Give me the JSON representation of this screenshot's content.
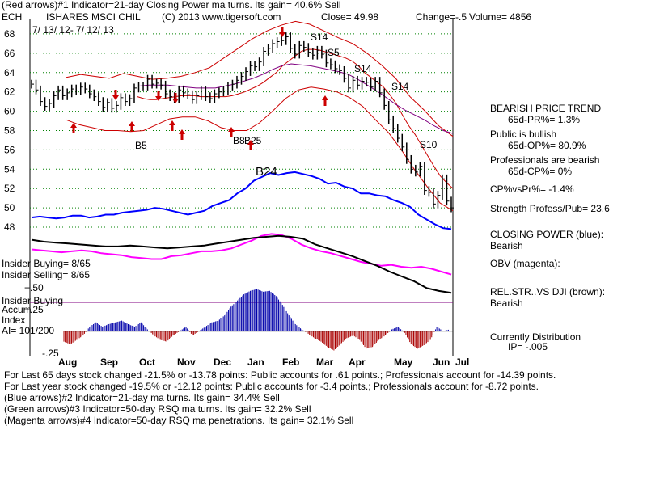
{
  "header": {
    "line1": "(Red arrows)#1 Indicator=21-day Closing Power ma turns. Its gain= 40.6% Sell",
    "symbol": "ECH",
    "name": "ISHARES MSCI CHIL",
    "copyright": "(C) 2013 www.tigersoft.com",
    "close": "Close=  49.98",
    "change": "Change=-.5",
    "volume": "Volume= 4856",
    "date_range": "7/ 13/ 12-  7/ 12/ 13"
  },
  "sidebar": {
    "trend_title": "BEARISH PRICE TREND",
    "pr": "65d-PR%= 1.3%",
    "public_title": "Public is bullish",
    "op": "65d-OP%= 80.9%",
    "pro_title": "Professionals are bearish",
    "cp": "65d-CP%= 0%",
    "cpvspr": "CP%vsPr%= -1.4%",
    "strength": "Strength Profess/Pub= 23.6",
    "closing_power_label": "CLOSING POWER (blue):",
    "closing_power_value": "Bearish",
    "obv_label": "OBV (magenta):",
    "relstr_label": "REL.STR..VS DJI (brown):",
    "relstr_value": "Bearish",
    "dist_label": "Currently Distribution",
    "ip": "IP= -.005"
  },
  "left_panel": {
    "insider_buying": "Insider Buying= 8/65",
    "insider_selling": "Insider Selling= 8/65",
    "plus50": "+.50",
    "insider_line_label": "Insider Buying",
    "accum1": "Accum",
    "plus25": "+.25",
    "accum2": "Index",
    "ai": "AI= 101/200",
    "minus25": "-.25"
  },
  "footer": {
    "line1": "For Last 65 days stock changed -21.5% or -13.78 points:  Public accounts for  .61 points.;  Professionals account for -14.39 points.",
    "line2": "For Last year stock changed -19.5% or -12.12 points:  Public accounts for -3.4 points.;  Professionals account for -8.72 points.",
    "line3": "(Blue arrows)#2 Indicator=21-day ma turns. Its gain= 34.4% Sell",
    "line4": "(Green arrows)#3 Indicator=50-day RSQ ma turns. Its gain= 32.2% Sell",
    "line5": "(Magenta arrows)#4 Indicator=50-day RSQ ma penetrations. Its gain= 32.1% Sell"
  },
  "chart_data": {
    "type": "line",
    "title": "ISHARES MSCI CHIL (ECH)",
    "x_months": [
      "Aug",
      "Sep",
      "Oct",
      "Nov",
      "Dec",
      "Jan",
      "Feb",
      "Mar",
      "Apr",
      "May",
      "Jun",
      "Jul"
    ],
    "y_ticks": [
      48,
      50,
      52,
      54,
      56,
      58,
      60,
      62,
      64,
      66,
      68
    ],
    "ylim": [
      47.5,
      69.5
    ],
    "colors": {
      "price": "#000000",
      "ma21": "#cc0000",
      "ma50": "#800080",
      "band": "#cc0000",
      "closing_power": "#0000ff",
      "obv": "#ff00ff",
      "relstr": "#000000",
      "accum_pos": "#0000aa",
      "accum_neg": "#aa0000",
      "grid": "#008000",
      "insider": "#800080",
      "annotation": "#000000"
    },
    "price_close": [
      62.8,
      62.2,
      61.0,
      60.5,
      60.8,
      61.6,
      62.2,
      61.6,
      61.9,
      62.3,
      62.1,
      62.5,
      62.3,
      61.8,
      61.5,
      61.0,
      60.4,
      60.9,
      60.3,
      60.6,
      61.4,
      61.0,
      61.3,
      62.4,
      62.6,
      62.6,
      63.3,
      62.8,
      62.9,
      62.7,
      61.8,
      61.5,
      61.3,
      62.2,
      61.9,
      61.7,
      61.2,
      61.6,
      62.1,
      61.5,
      61.3,
      61.8,
      62.0,
      62.1,
      62.6,
      62.8,
      63.2,
      63.6,
      64.1,
      64.7,
      64.6,
      65.1,
      66.2,
      66.5,
      67.0,
      67.2,
      67.3,
      67.7,
      66.5,
      65.9,
      66.8,
      66.6,
      66.1,
      65.8,
      66.3,
      65.9,
      65.0,
      64.8,
      64.4,
      64.2,
      63.4,
      62.4,
      63.2,
      62.7,
      63.1,
      63.0,
      62.5,
      63.1,
      61.9,
      60.6,
      59.1,
      58.2,
      57.2,
      56.3,
      55.0,
      54.0,
      53.7,
      54.3,
      51.8,
      51.6,
      50.4,
      51.3,
      53.0,
      50.7,
      50.0
    ],
    "ma21": [
      61.5,
      61.3,
      61.2,
      61.2,
      61.3,
      61.4,
      61.5,
      61.6,
      61.6,
      61.6,
      61.5,
      61.5,
      61.5,
      61.5,
      61.5,
      61.6,
      61.8,
      62.0,
      62.3,
      62.6,
      63.0,
      63.5,
      64.0,
      64.7,
      65.2,
      65.7,
      66.2,
      66.4,
      66.4,
      66.3,
      66.1,
      65.9,
      65.7,
      65.5,
      65.2,
      64.7,
      64.0,
      63.5,
      63.0,
      62.5,
      61.7,
      60.8,
      59.6,
      58.5,
      57.6,
      56.5,
      55.4,
      54.3,
      53.3,
      52.6,
      52.0
    ],
    "ma50": [
      62.6,
      62.7,
      62.7,
      62.7,
      62.6,
      62.5,
      62.4,
      62.4,
      62.4,
      62.6,
      62.8,
      63.1,
      63.4,
      63.8,
      64.3,
      64.7,
      64.9,
      64.8,
      64.7,
      64.5,
      64.3,
      64.1,
      63.8,
      63.3,
      62.7,
      62.1,
      61.4,
      60.7,
      60.1,
      59.6,
      59.1,
      58.5,
      58.0,
      57.7
    ],
    "band_upper": [
      63.5,
      63.8,
      63.6,
      63.4,
      63.9,
      63.6,
      63.3,
      63.4,
      63.6,
      64.0,
      64.5,
      65.5,
      66.5,
      67.5,
      68.3,
      68.9,
      69.3,
      69.0,
      68.3,
      67.6,
      67.0,
      66.0,
      64.8,
      63.4,
      61.5,
      60.1,
      58.5,
      57.4
    ],
    "band_lower": [
      59.1,
      58.6,
      58.3,
      58.0,
      58.0,
      57.9,
      58.0,
      58.6,
      59.2,
      59.4,
      59.4,
      59.0,
      58.3,
      58.0,
      58.0,
      58.8,
      60.0,
      61.3,
      62.2,
      62.5,
      62.3,
      62.0,
      61.4,
      60.5,
      59.1,
      57.8,
      56.0,
      54.0,
      52.2,
      50.5,
      49.7
    ],
    "closing_power": [
      49.0,
      49.1,
      49.0,
      48.9,
      49.0,
      49.2,
      49.2,
      49.0,
      49.1,
      49.3,
      49.3,
      49.5,
      49.6,
      49.7,
      49.8,
      50.0,
      49.9,
      49.7,
      49.5,
      49.3,
      49.5,
      49.7,
      50.2,
      50.5,
      50.8,
      51.5,
      52.0,
      52.8,
      53.2,
      53.6,
      53.4,
      53.6,
      53.7,
      53.5,
      53.3,
      53.0,
      52.5,
      52.6,
      52.2,
      52.0,
      51.5,
      51.5,
      51.3,
      51.2,
      50.8,
      50.5,
      50.1,
      49.3,
      48.8,
      48.3,
      47.9,
      47.8
    ],
    "obv": [
      45.7,
      45.6,
      45.5,
      45.4,
      45.5,
      45.6,
      45.5,
      45.3,
      45.2,
      45.1,
      44.9,
      44.8,
      44.7,
      44.7,
      45.0,
      45.1,
      45.3,
      45.5,
      45.5,
      45.6,
      45.8,
      46.2,
      46.6,
      47.1,
      47.3,
      47.2,
      46.8,
      46.2,
      45.8,
      45.5,
      45.3,
      45.0,
      44.7,
      44.4,
      44.2,
      44.0,
      44.1,
      43.9,
      43.8,
      43.9,
      43.7,
      43.4,
      43.1
    ],
    "relstr": [
      46.7,
      46.5,
      46.4,
      46.3,
      46.2,
      46.1,
      46.0,
      46.0,
      46.1,
      46.0,
      45.9,
      45.8,
      45.9,
      46.0,
      46.1,
      46.3,
      46.5,
      46.7,
      46.9,
      47.0,
      47.1,
      47.0,
      46.8,
      46.2,
      45.8,
      45.4,
      45.0,
      44.5,
      44.0,
      43.4,
      42.9,
      42.4,
      41.7,
      41.4,
      41.2
    ],
    "accum_index": [
      -0.12,
      -0.15,
      -0.1,
      -0.05,
      0.05,
      0.1,
      0.05,
      0.08,
      0.1,
      0.12,
      0.08,
      0.05,
      0.1,
      0.02,
      -0.05,
      -0.1,
      -0.12,
      -0.05,
      0.0,
      0.05,
      -0.05,
      0.0,
      0.05,
      0.1,
      0.12,
      0.18,
      0.28,
      0.35,
      0.42,
      0.46,
      0.48,
      0.45,
      0.46,
      0.4,
      0.3,
      0.18,
      0.08,
      0.02,
      -0.03,
      -0.08,
      -0.12,
      -0.18,
      -0.22,
      -0.15,
      -0.08,
      -0.05,
      -0.1,
      -0.2,
      -0.18,
      -0.1,
      -0.05,
      0.02,
      0.05,
      -0.02,
      -0.15,
      -0.2,
      -0.16,
      -0.1,
      0.05,
      0.0,
      0.02
    ],
    "accum_ylim": [
      -0.28,
      0.55
    ],
    "annotations": [
      "S14",
      "S5",
      "S14",
      "S14",
      "S10",
      "B5",
      "B8",
      "B25",
      "B24"
    ]
  }
}
